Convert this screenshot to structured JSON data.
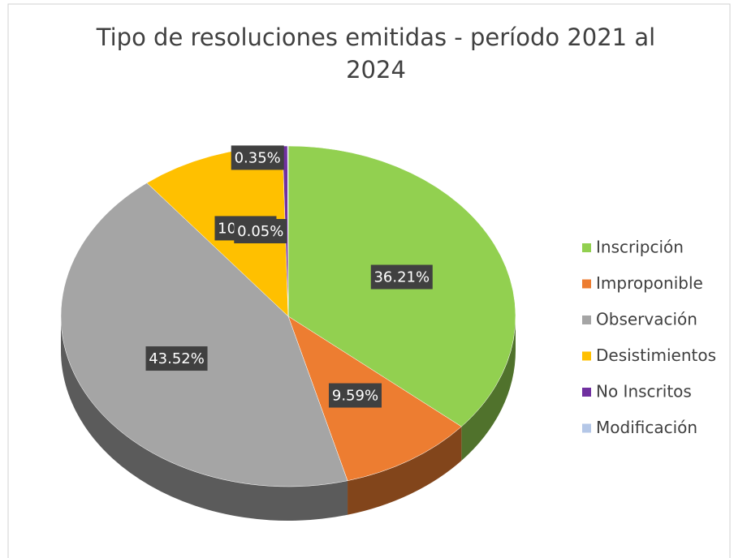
{
  "chart_data": {
    "type": "pie",
    "title": "Tipo de resoluciones emitidas - período 2021 al 2024",
    "series": [
      {
        "name": "Inscripción",
        "color": "#92d050",
        "values": [
          36.21
        ],
        "value_labels": [
          "36.21%"
        ]
      },
      {
        "name": "Improponible",
        "color": "#ed7d31",
        "values": [
          9.59
        ],
        "value_labels": [
          "9.59%"
        ]
      },
      {
        "name": "Observación",
        "color": "#a5a5a5",
        "values": [
          43.52
        ],
        "value_labels": [
          "43.52%"
        ]
      },
      {
        "name": "Desistimientos",
        "color": "#ffc000",
        "values": [
          10.28
        ],
        "value_labels": [
          "10.28%"
        ]
      },
      {
        "name": "No Inscritos",
        "color": "#7030a0",
        "values": [
          0.35
        ],
        "value_labels": [
          "0.35%"
        ]
      },
      {
        "name": "Modificación",
        "color": "#b4c7e7",
        "values": [
          0.05
        ],
        "value_labels": [
          "0.05%"
        ]
      }
    ],
    "legend": "right"
  }
}
